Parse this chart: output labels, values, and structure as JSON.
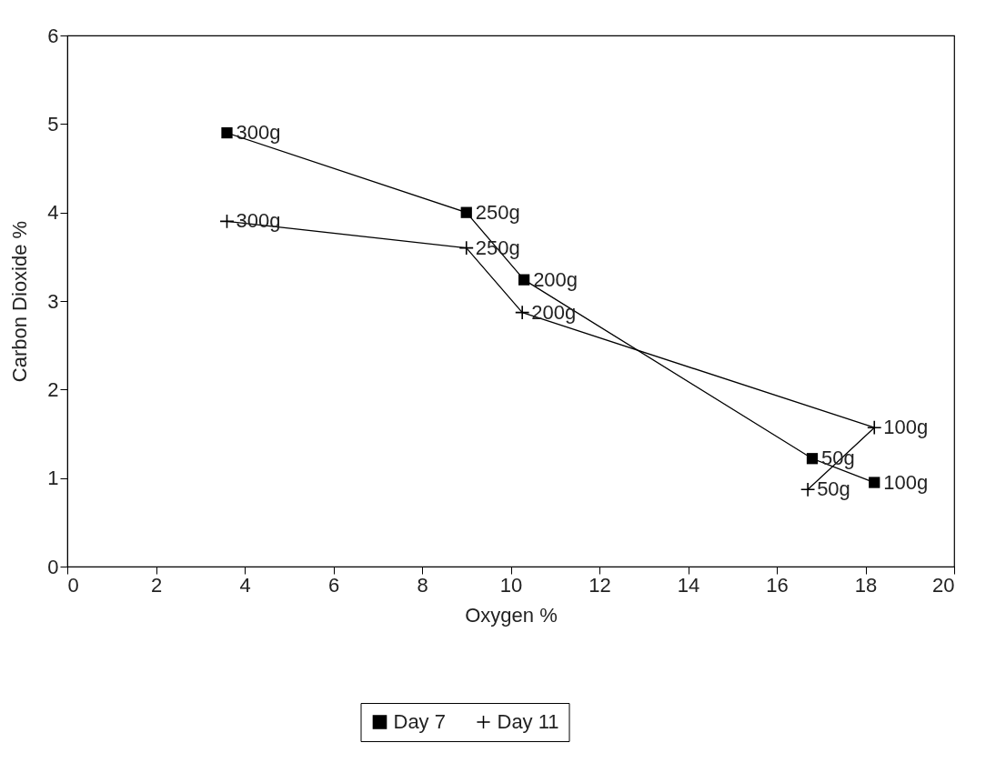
{
  "chart_data": {
    "type": "line",
    "xlabel": "Oxygen %",
    "ylabel": "Carbon Dioxide  %",
    "xlim": [
      0,
      20
    ],
    "ylim": [
      0,
      6
    ],
    "xticks": [
      0,
      2,
      4,
      6,
      8,
      10,
      12,
      14,
      16,
      18,
      20
    ],
    "yticks": [
      0,
      1,
      2,
      3,
      4,
      5,
      6
    ],
    "grid": false,
    "legend": "bottom",
    "series": [
      {
        "name": "Day 7",
        "color": "#000000",
        "marker": "square",
        "x": [
          3.6,
          9.0,
          10.3,
          16.8,
          18.2
        ],
        "values": [
          4.9,
          4.0,
          3.24,
          1.22,
          0.95
        ]
      },
      {
        "name": "Day 11",
        "color": "#000000",
        "marker": "cross",
        "x": [
          3.6,
          9.0,
          10.26,
          18.2,
          16.7
        ],
        "values": [
          3.9,
          3.6,
          2.87,
          1.57,
          0.87
        ]
      }
    ],
    "annotations": [
      {
        "text": "300g",
        "x": 3.6,
        "y": 4.9
      },
      {
        "text": "250g",
        "x": 9.0,
        "y": 4.0
      },
      {
        "text": "200g",
        "x": 10.3,
        "y": 3.24
      },
      {
        "text": "50g",
        "x": 16.8,
        "y": 1.22
      },
      {
        "text": "100g",
        "x": 18.2,
        "y": 0.95
      },
      {
        "text": "300g",
        "x": 3.6,
        "y": 3.9
      },
      {
        "text": "250g",
        "x": 9.0,
        "y": 3.6
      },
      {
        "text": "200g",
        "x": 10.26,
        "y": 2.87
      },
      {
        "text": "100g",
        "x": 18.2,
        "y": 1.57
      },
      {
        "text": "50g",
        "x": 16.7,
        "y": 0.87
      }
    ]
  }
}
